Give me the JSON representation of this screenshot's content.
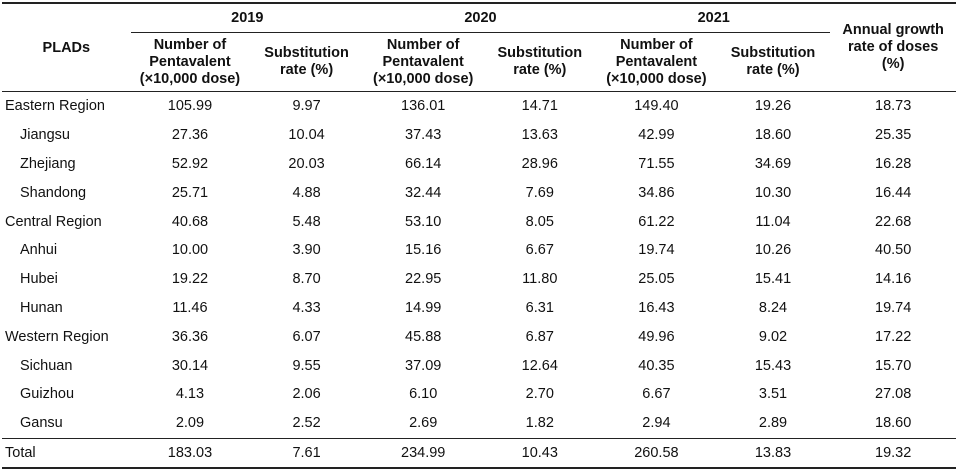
{
  "header": {
    "plads": "PLADs",
    "years": [
      "2019",
      "2020",
      "2021"
    ],
    "number_col_label": "Number of Pentavalent (×10,000 dose)",
    "number_col_lines": [
      "Number of",
      "Pentavalent",
      "(×10,000 dose)"
    ],
    "rate_col_lines": [
      "Substitution",
      "rate (%)"
    ],
    "growth_lines": [
      "Annual growth",
      "rate of doses",
      "(%)"
    ]
  },
  "rows": [
    {
      "name": "Eastern Region",
      "indent": false,
      "n2019": "105.99",
      "r2019": "9.97",
      "n2020": "136.01",
      "r2020": "14.71",
      "n2021": "149.40",
      "r2021": "19.26",
      "growth": "18.73"
    },
    {
      "name": "Jiangsu",
      "indent": true,
      "n2019": "27.36",
      "r2019": "10.04",
      "n2020": "37.43",
      "r2020": "13.63",
      "n2021": "42.99",
      "r2021": "18.60",
      "growth": "25.35"
    },
    {
      "name": "Zhejiang",
      "indent": true,
      "n2019": "52.92",
      "r2019": "20.03",
      "n2020": "66.14",
      "r2020": "28.96",
      "n2021": "71.55",
      "r2021": "34.69",
      "growth": "16.28"
    },
    {
      "name": "Shandong",
      "indent": true,
      "n2019": "25.71",
      "r2019": "4.88",
      "n2020": "32.44",
      "r2020": "7.69",
      "n2021": "34.86",
      "r2021": "10.30",
      "growth": "16.44"
    },
    {
      "name": "Central Region",
      "indent": false,
      "n2019": "40.68",
      "r2019": "5.48",
      "n2020": "53.10",
      "r2020": "8.05",
      "n2021": "61.22",
      "r2021": "11.04",
      "growth": "22.68"
    },
    {
      "name": "Anhui",
      "indent": true,
      "n2019": "10.00",
      "r2019": "3.90",
      "n2020": "15.16",
      "r2020": "6.67",
      "n2021": "19.74",
      "r2021": "10.26",
      "growth": "40.50"
    },
    {
      "name": "Hubei",
      "indent": true,
      "n2019": "19.22",
      "r2019": "8.70",
      "n2020": "22.95",
      "r2020": "11.80",
      "n2021": "25.05",
      "r2021": "15.41",
      "growth": "14.16"
    },
    {
      "name": "Hunan",
      "indent": true,
      "n2019": "11.46",
      "r2019": "4.33",
      "n2020": "14.99",
      "r2020": "6.31",
      "n2021": "16.43",
      "r2021": "8.24",
      "growth": "19.74"
    },
    {
      "name": "Western Region",
      "indent": false,
      "n2019": "36.36",
      "r2019": "6.07",
      "n2020": "45.88",
      "r2020": "6.87",
      "n2021": "49.96",
      "r2021": "9.02",
      "growth": "17.22"
    },
    {
      "name": "Sichuan",
      "indent": true,
      "n2019": "30.14",
      "r2019": "9.55",
      "n2020": "37.09",
      "r2020": "12.64",
      "n2021": "40.35",
      "r2021": "15.43",
      "growth": "15.70"
    },
    {
      "name": "Guizhou",
      "indent": true,
      "n2019": "4.13",
      "r2019": "2.06",
      "n2020": "6.10",
      "r2020": "2.70",
      "n2021": "6.67",
      "r2021": "3.51",
      "growth": "27.08"
    },
    {
      "name": "Gansu",
      "indent": true,
      "n2019": "2.09",
      "r2019": "2.52",
      "n2020": "2.69",
      "r2020": "1.82",
      "n2021": "2.94",
      "r2021": "2.89",
      "growth": "18.60"
    },
    {
      "name": "Total",
      "indent": false,
      "n2019": "183.03",
      "r2019": "7.61",
      "n2020": "234.99",
      "r2020": "10.43",
      "n2021": "260.58",
      "r2021": "13.83",
      "growth": "19.32"
    }
  ]
}
